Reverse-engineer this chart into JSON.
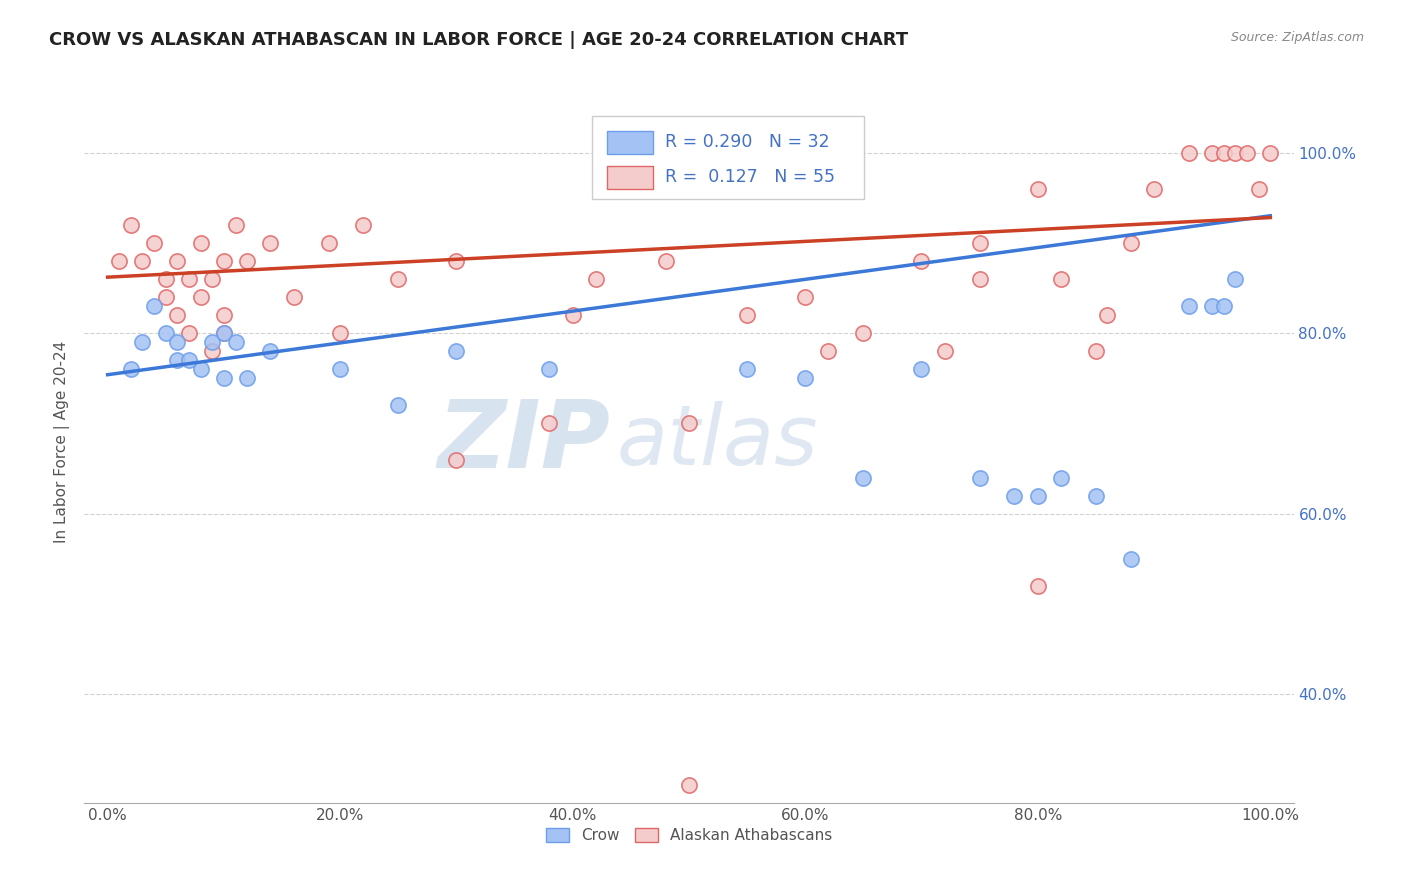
{
  "title": "CROW VS ALASKAN ATHABASCAN IN LABOR FORCE | AGE 20-24 CORRELATION CHART",
  "source": "Source: ZipAtlas.com",
  "ylabel": "In Labor Force | Age 20-24",
  "xlim": [
    -0.02,
    1.02
  ],
  "ylim": [
    0.28,
    1.08
  ],
  "crow_R": 0.29,
  "crow_N": 32,
  "athabascan_R": 0.127,
  "athabascan_N": 55,
  "crow_color": "#a4c2f4",
  "athabascan_color": "#f4cccc",
  "crow_edge_color": "#6d9eeb",
  "athabascan_edge_color": "#e06666",
  "crow_line_color": "#3c78d8",
  "athabascan_line_color": "#cc4125",
  "crow_scatter_x": [
    0.02,
    0.03,
    0.04,
    0.05,
    0.06,
    0.06,
    0.07,
    0.08,
    0.09,
    0.1,
    0.1,
    0.11,
    0.12,
    0.14,
    0.2,
    0.25,
    0.3,
    0.38,
    0.55,
    0.6,
    0.65,
    0.7,
    0.75,
    0.78,
    0.8,
    0.82,
    0.85,
    0.88,
    0.93,
    0.95,
    0.96,
    0.97
  ],
  "crow_scatter_y": [
    0.76,
    0.79,
    0.83,
    0.8,
    0.79,
    0.77,
    0.77,
    0.76,
    0.79,
    0.8,
    0.75,
    0.79,
    0.75,
    0.78,
    0.76,
    0.72,
    0.78,
    0.76,
    0.76,
    0.75,
    0.64,
    0.76,
    0.64,
    0.62,
    0.62,
    0.64,
    0.62,
    0.55,
    0.83,
    0.83,
    0.83,
    0.86
  ],
  "athabascan_scatter_x": [
    0.01,
    0.02,
    0.03,
    0.04,
    0.05,
    0.05,
    0.06,
    0.06,
    0.07,
    0.07,
    0.08,
    0.08,
    0.09,
    0.09,
    0.1,
    0.1,
    0.11,
    0.12,
    0.14,
    0.16,
    0.19,
    0.22,
    0.25,
    0.3,
    0.38,
    0.42,
    0.48,
    0.55,
    0.6,
    0.65,
    0.7,
    0.72,
    0.75,
    0.8,
    0.85,
    0.88,
    0.9,
    0.93,
    0.95,
    0.96,
    0.97,
    0.98,
    0.99,
    1.0,
    0.4,
    0.5,
    0.62,
    0.75,
    0.82,
    0.86,
    0.1,
    0.2,
    0.3,
    0.8,
    0.5
  ],
  "athabascan_scatter_y": [
    0.88,
    0.92,
    0.88,
    0.9,
    0.86,
    0.84,
    0.88,
    0.82,
    0.86,
    0.8,
    0.9,
    0.84,
    0.86,
    0.78,
    0.88,
    0.82,
    0.92,
    0.88,
    0.9,
    0.84,
    0.9,
    0.92,
    0.86,
    0.88,
    0.7,
    0.86,
    0.88,
    0.82,
    0.84,
    0.8,
    0.88,
    0.78,
    0.9,
    0.96,
    0.78,
    0.9,
    0.96,
    1.0,
    1.0,
    1.0,
    1.0,
    1.0,
    0.96,
    1.0,
    0.82,
    0.7,
    0.78,
    0.86,
    0.86,
    0.82,
    0.8,
    0.8,
    0.66,
    0.52,
    0.3
  ],
  "crow_line_x": [
    0.0,
    1.0
  ],
  "crow_line_y": [
    0.754,
    0.93
  ],
  "athabascan_line_x": [
    0.0,
    1.0
  ],
  "athabascan_line_y": [
    0.862,
    0.928
  ],
  "yticks": [
    0.4,
    0.6,
    0.8,
    1.0
  ],
  "ytick_labels": [
    "40.0%",
    "60.0%",
    "80.0%",
    "100.0%"
  ],
  "xticks": [
    0.0,
    0.2,
    0.4,
    0.6,
    0.8,
    1.0
  ],
  "xtick_labels": [
    "0.0%",
    "20.0%",
    "40.0%",
    "60.0%",
    "80.0%",
    "100.0%"
  ],
  "legend_crow_label": "Crow",
  "legend_athabascan_label": "Alaskan Athabascans",
  "title_fontsize": 13,
  "axis_label_fontsize": 11,
  "tick_fontsize": 11,
  "marker_size": 120,
  "marker_linewidth": 1.2,
  "background_color": "#ffffff",
  "grid_color": "#cccccc",
  "watermark_zip": "ZIP",
  "watermark_atlas": "atlas",
  "watermark_color_zip": "#b8cce4",
  "watermark_color_atlas": "#b8cce4"
}
